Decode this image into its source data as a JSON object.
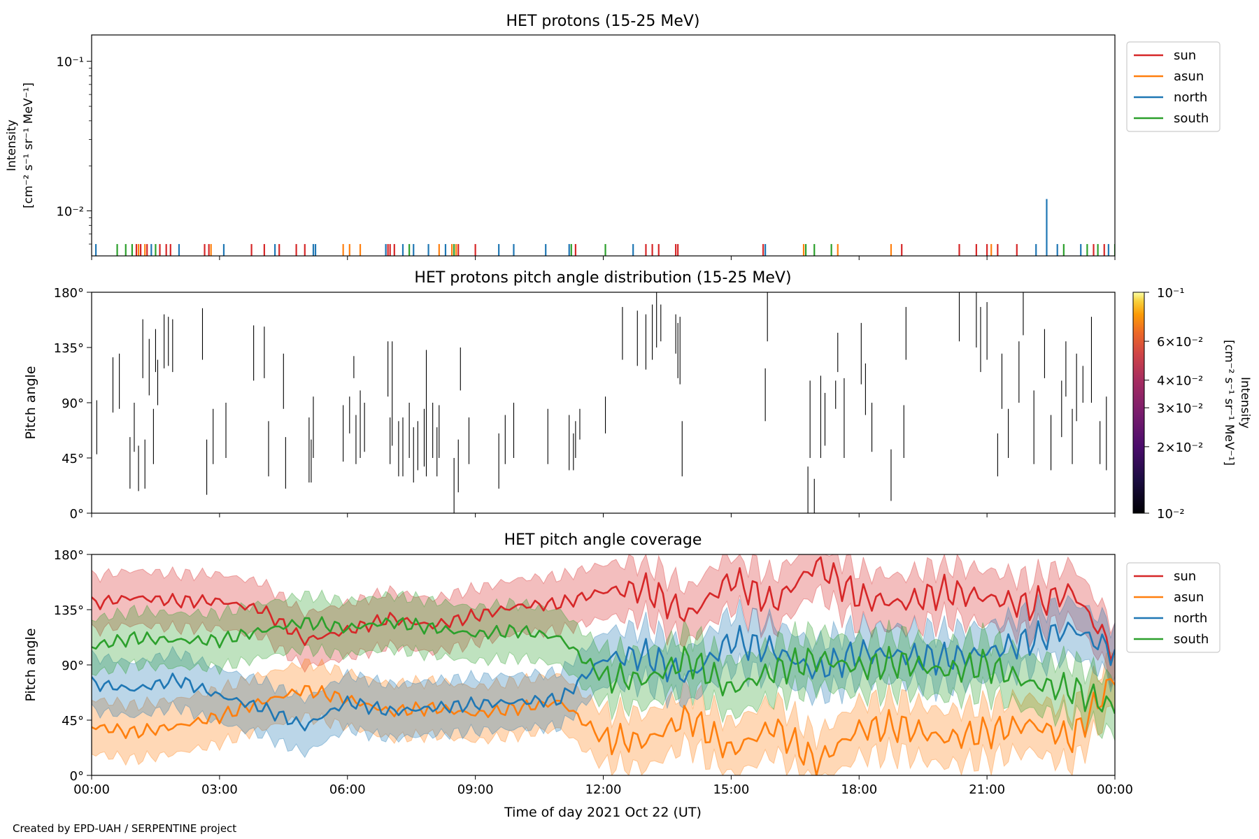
{
  "figure": {
    "footer": "Created by EPD-UAH / SERPENTINE project",
    "xlabel": "Time of day 2021 Oct 22 (UT)",
    "time_ticks": [
      "00:00",
      "03:00",
      "06:00",
      "09:00",
      "12:00",
      "15:00",
      "18:00",
      "21:00",
      "00:00"
    ]
  },
  "colors": {
    "sun": "#d62728",
    "asun": "#ff7f0e",
    "north": "#1f77b4",
    "south": "#2ca02c"
  },
  "chart_data": [
    {
      "type": "line",
      "title": "HET protons (15-25 MeV)",
      "ylabel_line1": "Intensity",
      "ylabel_line2": "[cm⁻² s⁻¹ sr⁻¹ MeV⁻¹]",
      "yscale": "log",
      "ylim": [
        0.005,
        0.15
      ],
      "y_ticks": [
        {
          "value": 0.1,
          "label": "10⁻¹"
        },
        {
          "value": 0.01,
          "label": "10⁻²"
        }
      ],
      "xlim_hours": [
        0,
        24
      ],
      "legend": {
        "placement": "outside-right",
        "entries": [
          "sun",
          "asun",
          "north",
          "south"
        ]
      },
      "series": [
        {
          "name": "sun",
          "color": "#d62728",
          "x_hours": [
            1.05,
            1.15,
            1.3,
            1.6,
            1.75,
            1.85,
            2.65,
            2.75,
            3.75,
            4.05,
            4.4,
            4.8,
            5.0,
            6.95,
            7.0,
            7.1,
            8.6,
            9.0,
            11.35,
            13.0,
            13.15,
            13.3,
            13.7,
            13.75,
            15.75,
            19.0,
            20.35,
            20.75,
            21.0,
            21.25,
            21.7,
            23.5,
            23.75
          ],
          "y": [
            0.006,
            0.006,
            0.006,
            0.006,
            0.006,
            0.006,
            0.006,
            0.006,
            0.006,
            0.006,
            0.006,
            0.006,
            0.006,
            0.006,
            0.006,
            0.006,
            0.006,
            0.006,
            0.006,
            0.006,
            0.006,
            0.006,
            0.006,
            0.006,
            0.006,
            0.006,
            0.006,
            0.006,
            0.006,
            0.006,
            0.006,
            0.006,
            0.006
          ]
        },
        {
          "name": "asun",
          "color": "#ff7f0e",
          "x_hours": [
            1.1,
            1.25,
            2.8,
            5.9,
            6.05,
            6.3,
            8.15,
            8.45,
            8.55,
            16.7,
            17.5,
            18.75,
            21.1
          ],
          "y": [
            0.006,
            0.006,
            0.006,
            0.006,
            0.006,
            0.006,
            0.006,
            0.006,
            0.006,
            0.006,
            0.006,
            0.006,
            0.006
          ]
        },
        {
          "name": "north",
          "color": "#1f77b4",
          "x_hours": [
            0.1,
            1.4,
            2.05,
            3.1,
            4.3,
            5.2,
            5.25,
            6.9,
            7.3,
            7.55,
            7.9,
            8.3,
            9.55,
            9.9,
            10.65,
            11.2,
            12.7,
            15.8,
            22.15,
            22.4,
            22.65,
            23.2,
            23.85
          ],
          "y": [
            0.006,
            0.006,
            0.006,
            0.006,
            0.006,
            0.006,
            0.006,
            0.006,
            0.006,
            0.006,
            0.006,
            0.006,
            0.006,
            0.006,
            0.006,
            0.006,
            0.006,
            0.006,
            0.006,
            0.012,
            0.006,
            0.006,
            0.006
          ]
        },
        {
          "name": "south",
          "color": "#2ca02c",
          "x_hours": [
            0.6,
            0.8,
            0.95,
            1.5,
            7.45,
            8.5,
            11.25,
            12.05,
            16.75,
            16.95,
            17.35,
            22.8,
            23.35,
            23.6,
            24.0
          ],
          "y": [
            0.006,
            0.006,
            0.006,
            0.006,
            0.006,
            0.006,
            0.006,
            0.006,
            0.006,
            0.006,
            0.006,
            0.006,
            0.006,
            0.006,
            0.006
          ]
        }
      ]
    },
    {
      "type": "heatmap",
      "title": "HET protons pitch angle distribution (15-25 MeV)",
      "ylabel": "Pitch angle",
      "ylim": [
        0,
        180
      ],
      "y_ticks": [
        "0°",
        "45°",
        "90°",
        "135°",
        "180°"
      ],
      "xlim_hours": [
        0,
        24
      ],
      "colorbar": {
        "label_line1": "Intensity",
        "label_line2": "[cm⁻² s⁻¹ sr⁻¹ MeV⁻¹]",
        "scale": "log",
        "range": [
          0.01,
          0.1
        ],
        "ticks": [
          {
            "value": 0.1,
            "label": "10⁻¹"
          },
          {
            "value": 0.06,
            "label": "6×10⁻²"
          },
          {
            "value": 0.04,
            "label": "4×10⁻²"
          },
          {
            "value": 0.03,
            "label": "3×10⁻²"
          },
          {
            "value": 0.02,
            "label": "2×10⁻²"
          },
          {
            "value": 0.01,
            "label": "10⁻²"
          }
        ]
      },
      "cells": [
        [
          0.12,
          48,
          92
        ],
        [
          0.5,
          82,
          127
        ],
        [
          0.65,
          85,
          130
        ],
        [
          0.9,
          20,
          62
        ],
        [
          1.0,
          50,
          90
        ],
        [
          1.1,
          18,
          55
        ],
        [
          1.2,
          110,
          158
        ],
        [
          1.25,
          20,
          60
        ],
        [
          1.35,
          96,
          142
        ],
        [
          1.45,
          40,
          85
        ],
        [
          1.5,
          115,
          150
        ],
        [
          1.55,
          88,
          125
        ],
        [
          1.7,
          118,
          162
        ],
        [
          1.8,
          120,
          160
        ],
        [
          1.9,
          115,
          158
        ],
        [
          2.6,
          125,
          167
        ],
        [
          2.7,
          15,
          60
        ],
        [
          2.85,
          40,
          85
        ],
        [
          3.15,
          45,
          90
        ],
        [
          3.8,
          108,
          153
        ],
        [
          4.05,
          110,
          152
        ],
        [
          4.15,
          30,
          75
        ],
        [
          4.5,
          85,
          130
        ],
        [
          4.55,
          20,
          62
        ],
        [
          5.1,
          25,
          78
        ],
        [
          5.15,
          25,
          60
        ],
        [
          5.2,
          45,
          95
        ],
        [
          5.9,
          42,
          88
        ],
        [
          6.05,
          65,
          95
        ],
        [
          6.15,
          110,
          128
        ],
        [
          6.2,
          40,
          80
        ],
        [
          6.3,
          45,
          100
        ],
        [
          6.4,
          50,
          90
        ],
        [
          6.95,
          95,
          140
        ],
        [
          7.0,
          40,
          78
        ],
        [
          7.05,
          55,
          140
        ],
        [
          7.2,
          30,
          75
        ],
        [
          7.3,
          30,
          78
        ],
        [
          7.45,
          45,
          90
        ],
        [
          7.55,
          25,
          70
        ],
        [
          7.65,
          35,
          75
        ],
        [
          7.8,
          38,
          85
        ],
        [
          7.85,
          30,
          133
        ],
        [
          8.0,
          45,
          90
        ],
        [
          8.1,
          30,
          70
        ],
        [
          8.15,
          45,
          88
        ],
        [
          8.5,
          0,
          45
        ],
        [
          8.6,
          17,
          60
        ],
        [
          8.65,
          100,
          135
        ],
        [
          8.85,
          40,
          78
        ],
        [
          9.55,
          20,
          65
        ],
        [
          9.7,
          40,
          80
        ],
        [
          9.9,
          45,
          90
        ],
        [
          10.7,
          40,
          85
        ],
        [
          11.2,
          35,
          80
        ],
        [
          11.3,
          35,
          65
        ],
        [
          11.35,
          45,
          75
        ],
        [
          11.45,
          60,
          85
        ],
        [
          11.55,
          0,
          0
        ],
        [
          12.05,
          65,
          95
        ],
        [
          12.45,
          125,
          168
        ],
        [
          12.8,
          120,
          165
        ],
        [
          13.0,
          117,
          162
        ],
        [
          13.15,
          125,
          170
        ],
        [
          13.25,
          135,
          180
        ],
        [
          13.35,
          140,
          170
        ],
        [
          13.7,
          130,
          162
        ],
        [
          13.75,
          110,
          155
        ],
        [
          13.8,
          105,
          160
        ],
        [
          13.85,
          30,
          75
        ],
        [
          15.8,
          75,
          118
        ],
        [
          15.85,
          140,
          180
        ],
        [
          16.8,
          0,
          38
        ],
        [
          16.85,
          45,
          108
        ],
        [
          16.95,
          0,
          28
        ],
        [
          17.1,
          45,
          112
        ],
        [
          17.2,
          55,
          98
        ],
        [
          17.45,
          85,
          108
        ],
        [
          17.5,
          115,
          147
        ],
        [
          17.65,
          45,
          110
        ],
        [
          18.05,
          105,
          155
        ],
        [
          18.15,
          80,
          122
        ],
        [
          18.3,
          50,
          90
        ],
        [
          18.75,
          10,
          52
        ],
        [
          18.9,
          0,
          0
        ],
        [
          19.05,
          45,
          88
        ],
        [
          19.1,
          125,
          168
        ],
        [
          20.35,
          140,
          180
        ],
        [
          20.55,
          0,
          0
        ],
        [
          20.75,
          135,
          180
        ],
        [
          20.85,
          115,
          168
        ],
        [
          21.0,
          125,
          172
        ],
        [
          21.25,
          30,
          65
        ],
        [
          21.35,
          85,
          130
        ],
        [
          21.5,
          45,
          85
        ],
        [
          21.75,
          90,
          140
        ],
        [
          21.85,
          145,
          180
        ],
        [
          22.1,
          40,
          100
        ],
        [
          22.35,
          110,
          150
        ],
        [
          22.5,
          35,
          80
        ],
        [
          22.75,
          62,
          108
        ],
        [
          22.85,
          95,
          140
        ],
        [
          23.0,
          40,
          85
        ],
        [
          23.1,
          75,
          130
        ],
        [
          23.25,
          90,
          120
        ],
        [
          23.45,
          90,
          160
        ],
        [
          23.65,
          40,
          75
        ],
        [
          23.8,
          35,
          95
        ]
      ]
    },
    {
      "type": "area",
      "title": "HET pitch angle coverage",
      "ylabel": "Pitch angle",
      "ylim": [
        0,
        180
      ],
      "y_ticks": [
        "0°",
        "45°",
        "90°",
        "135°",
        "180°"
      ],
      "xlim_hours": [
        0,
        24
      ],
      "legend": {
        "placement": "outside-right",
        "entries": [
          "sun",
          "asun",
          "north",
          "south"
        ]
      },
      "band_halfwidth_deg": 22,
      "x_hours": [
        0,
        1,
        2,
        3,
        4,
        5,
        6,
        7,
        8,
        9,
        10,
        11,
        12,
        13,
        14,
        15,
        16,
        17,
        18,
        19,
        20,
        21,
        22,
        23,
        24
      ],
      "series": [
        {
          "name": "sun",
          "values": [
            140,
            145,
            142,
            142,
            135,
            110,
            118,
            128,
            122,
            130,
            138,
            140,
            150,
            152,
            130,
            160,
            140,
            172,
            145,
            140,
            150,
            145,
            138,
            150,
            100
          ]
        },
        {
          "name": "asun",
          "values": [
            40,
            35,
            40,
            48,
            60,
            70,
            62,
            52,
            55,
            50,
            55,
            60,
            30,
            28,
            48,
            20,
            40,
            10,
            38,
            40,
            30,
            35,
            42,
            30,
            80
          ]
        },
        {
          "name": "north",
          "values": [
            75,
            70,
            78,
            65,
            55,
            40,
            60,
            52,
            55,
            58,
            60,
            62,
            95,
            98,
            80,
            110,
            102,
            85,
            100,
            98,
            95,
            100,
            110,
            120,
            100
          ]
        },
        {
          "name": "south",
          "values": [
            105,
            112,
            110,
            110,
            118,
            125,
            120,
            125,
            120,
            115,
            118,
            112,
            80,
            78,
            95,
            70,
            85,
            95,
            88,
            92,
            85,
            90,
            75,
            70,
            55
          ]
        }
      ]
    }
  ]
}
